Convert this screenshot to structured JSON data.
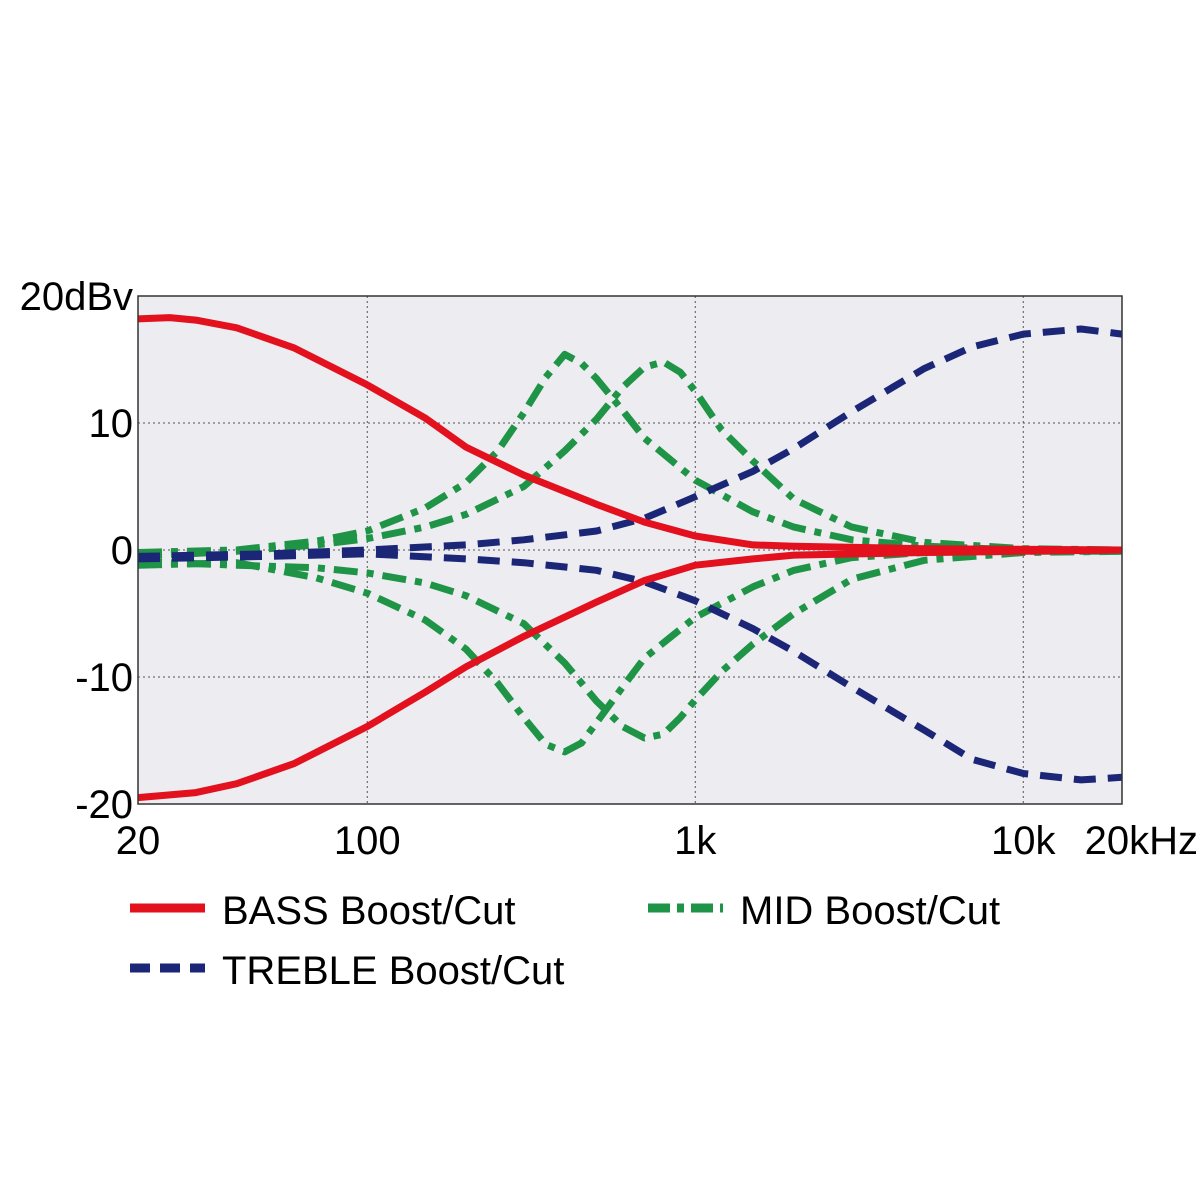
{
  "chart_data": {
    "type": "line",
    "x_scale": "log",
    "xlim": [
      20,
      20000
    ],
    "ylim": [
      -20,
      20
    ],
    "grid": true,
    "legend_position": "bottom",
    "y_ticks": [
      {
        "value": 20,
        "label": "20dBv"
      },
      {
        "value": 10,
        "label": "10"
      },
      {
        "value": 0,
        "label": "0"
      },
      {
        "value": -10,
        "label": "-10"
      },
      {
        "value": -20,
        "label": "-20"
      }
    ],
    "x_ticks": [
      {
        "value": 20,
        "label": "20"
      },
      {
        "value": 100,
        "label": "100"
      },
      {
        "value": 1000,
        "label": "1k"
      },
      {
        "value": 10000,
        "label": "10k"
      },
      {
        "value": 20000,
        "label": "20kHz"
      }
    ],
    "series": [
      {
        "name": "BASS Boost/Cut",
        "legend": "bass",
        "color": "#e3101e",
        "style": "solid",
        "x": [
          20,
          25,
          30,
          40,
          60,
          100,
          150,
          200,
          300,
          500,
          700,
          1000,
          1500,
          2000,
          5000,
          20000
        ],
        "y": [
          18.2,
          18.3,
          18.1,
          17.5,
          15.9,
          13.0,
          10.4,
          8.1,
          5.9,
          3.6,
          2.2,
          1.1,
          0.4,
          0.3,
          0.1,
          0.0
        ]
      },
      {
        "name": "BASS Boost/Cut",
        "legend": "bass",
        "color": "#e3101e",
        "style": "solid",
        "x": [
          20,
          30,
          40,
          60,
          100,
          150,
          200,
          300,
          500,
          700,
          1000,
          1500,
          2000,
          5000,
          20000
        ],
        "y": [
          -19.5,
          -19.1,
          -18.4,
          -16.8,
          -13.9,
          -11.2,
          -9.2,
          -6.8,
          -4.1,
          -2.4,
          -1.2,
          -0.7,
          -0.4,
          -0.2,
          0.0
        ]
      },
      {
        "name": "TREBLE Boost/Cut",
        "legend": "treble",
        "color": "#1c2677",
        "style": "dashed",
        "x": [
          20,
          50,
          100,
          200,
          300,
          500,
          700,
          1000,
          1500,
          2000,
          3000,
          5000,
          7000,
          10000,
          15000,
          20000
        ],
        "y": [
          -0.5,
          -0.3,
          0.0,
          0.4,
          0.8,
          1.5,
          2.5,
          4.2,
          6.2,
          8.0,
          10.9,
          14.3,
          16.0,
          17.0,
          17.4,
          17.0
        ]
      },
      {
        "name": "TREBLE Boost/Cut",
        "legend": "treble",
        "color": "#1c2677",
        "style": "dashed",
        "x": [
          20,
          50,
          100,
          200,
          300,
          500,
          700,
          1000,
          1500,
          2000,
          3000,
          5000,
          7000,
          10000,
          15000,
          20000
        ],
        "y": [
          -0.7,
          -0.5,
          -0.3,
          -0.7,
          -1.0,
          -1.6,
          -2.5,
          -4.0,
          -6.2,
          -8.0,
          -10.8,
          -14.2,
          -16.5,
          -17.6,
          -18.1,
          -17.9
        ]
      },
      {
        "name": "MID Boost/Cut",
        "legend": "mid",
        "color": "#1f9447",
        "style": "dashdot",
        "x": [
          20,
          40,
          70,
          100,
          150,
          200,
          250,
          300,
          350,
          400,
          450,
          500,
          600,
          700,
          1000,
          1500,
          2000,
          3000,
          5000,
          10000,
          20000
        ],
        "y": [
          -0.2,
          0.0,
          0.7,
          1.5,
          3.3,
          5.3,
          7.8,
          10.8,
          13.6,
          15.4,
          14.7,
          13.5,
          11.0,
          8.8,
          5.5,
          3.0,
          1.8,
          0.8,
          0.3,
          0.0,
          0.0
        ]
      },
      {
        "name": "MID Boost/Cut",
        "legend": "mid",
        "color": "#1f9447",
        "style": "dashdot",
        "x": [
          20,
          40,
          70,
          100,
          150,
          200,
          250,
          300,
          350,
          400,
          450,
          500,
          600,
          700,
          1000,
          1500,
          2000,
          3000,
          5000,
          10000,
          20000
        ],
        "y": [
          -1.2,
          -1.0,
          -2.2,
          -3.4,
          -5.5,
          -7.8,
          -10.5,
          -13.2,
          -15.3,
          -15.9,
          -15.2,
          -13.6,
          -10.8,
          -8.5,
          -5.3,
          -2.9,
          -1.6,
          -0.6,
          -0.2,
          -0.1,
          -0.1
        ]
      },
      {
        "name": "MID Boost/Cut",
        "legend": "mid",
        "color": "#1f9447",
        "style": "dashdot",
        "x": [
          20,
          40,
          70,
          100,
          150,
          200,
          300,
          400,
          500,
          600,
          700,
          800,
          900,
          1000,
          1200,
          1500,
          2000,
          3000,
          5000,
          10000,
          20000
        ],
        "y": [
          -0.5,
          -0.1,
          0.4,
          0.9,
          1.8,
          2.8,
          5.0,
          7.8,
          10.3,
          12.8,
          14.4,
          14.8,
          14.0,
          12.5,
          9.5,
          7.0,
          4.0,
          1.8,
          0.6,
          0.1,
          0.0
        ]
      },
      {
        "name": "MID Boost/Cut",
        "legend": "mid",
        "color": "#1f9447",
        "style": "dashdot",
        "x": [
          20,
          40,
          70,
          100,
          150,
          200,
          300,
          400,
          500,
          600,
          700,
          800,
          900,
          1000,
          1200,
          1500,
          2000,
          3000,
          5000,
          10000,
          20000
        ],
        "y": [
          -0.9,
          -1.2,
          -1.4,
          -1.8,
          -2.6,
          -3.6,
          -5.8,
          -8.9,
          -11.9,
          -13.9,
          -14.8,
          -14.5,
          -13.2,
          -11.8,
          -9.6,
          -7.4,
          -5.0,
          -2.3,
          -0.8,
          -0.2,
          -0.1
        ]
      }
    ],
    "legend": [
      {
        "key": "bass",
        "label": "BASS Boost/Cut",
        "color": "#e3101e",
        "style": "solid"
      },
      {
        "key": "mid",
        "label": "MID Boost/Cut",
        "color": "#1f9447",
        "style": "dashdot"
      },
      {
        "key": "treble",
        "label": "TREBLE Boost/Cut",
        "color": "#1c2677",
        "style": "dashed"
      }
    ]
  }
}
